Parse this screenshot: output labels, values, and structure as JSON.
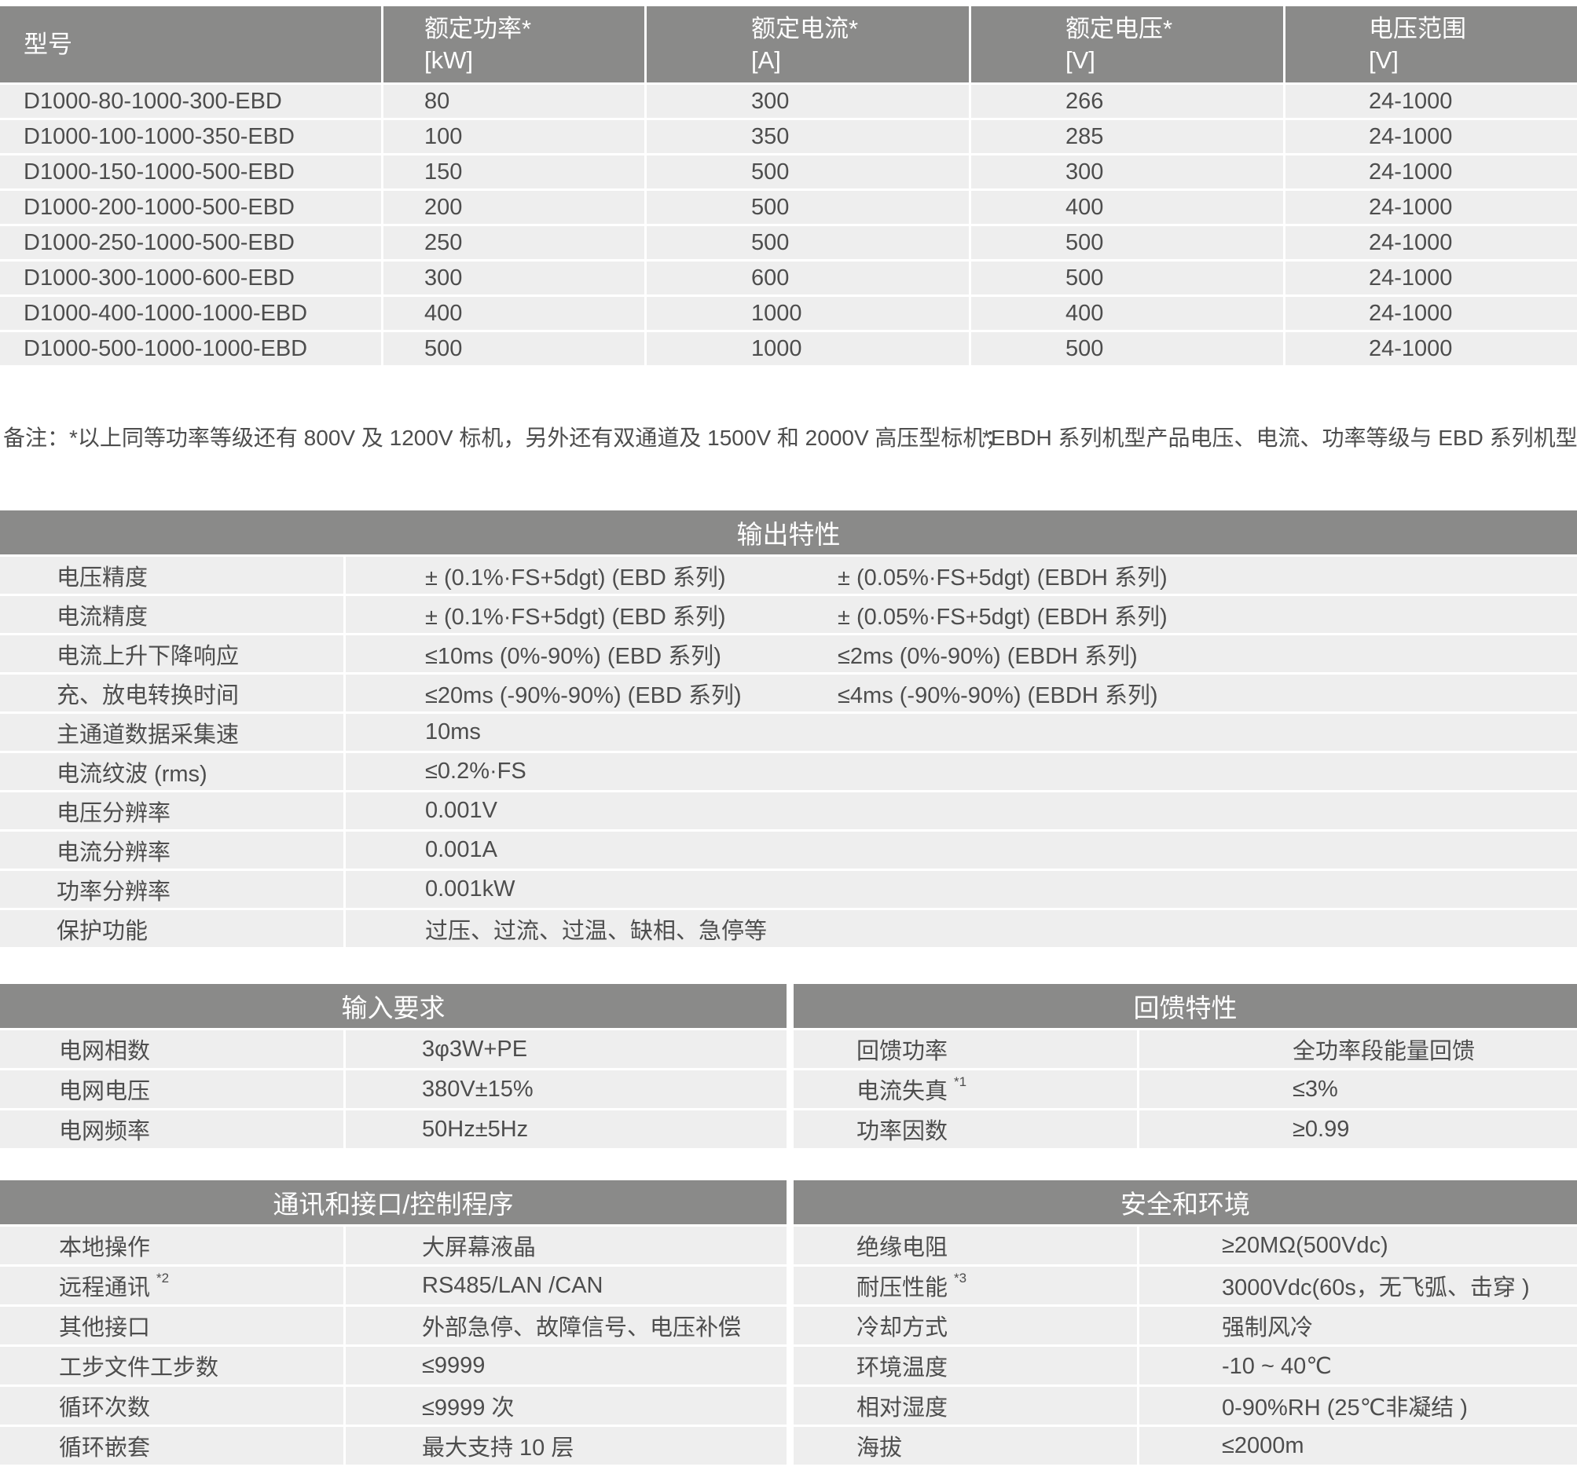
{
  "colors": {
    "header-bg": "#8a8a89",
    "row-bg": "#eeeeee",
    "text": "#4d4d4d",
    "header-text": "#ffffff",
    "page-bg": "#ffffff"
  },
  "model_table": {
    "headers": [
      {
        "line1": "型号",
        "line2": ""
      },
      {
        "line1": "额定功率*",
        "line2": "[kW]"
      },
      {
        "line1": "额定电流*",
        "line2": "[A]"
      },
      {
        "line1": "额定电压*",
        "line2": "[V]"
      },
      {
        "line1": "电压范围",
        "line2": "[V]"
      }
    ],
    "rows": [
      [
        "D1000-80-1000-300-EBD",
        "80",
        "300",
        "266",
        "24-1000"
      ],
      [
        "D1000-100-1000-350-EBD",
        "100",
        "350",
        "285",
        "24-1000"
      ],
      [
        "D1000-150-1000-500-EBD",
        "150",
        "500",
        "300",
        "24-1000"
      ],
      [
        "D1000-200-1000-500-EBD",
        "200",
        "500",
        "400",
        "24-1000"
      ],
      [
        "D1000-250-1000-500-EBD",
        "250",
        "500",
        "500",
        "24-1000"
      ],
      [
        "D1000-300-1000-600-EBD",
        "300",
        "600",
        "500",
        "24-1000"
      ],
      [
        "D1000-400-1000-1000-EBD",
        "400",
        "1000",
        "400",
        "24-1000"
      ],
      [
        "D1000-500-1000-1000-EBD",
        "500",
        "1000",
        "500",
        "24-1000"
      ]
    ]
  },
  "notes": {
    "left": "备注：*以上同等功率等级还有 800V 及 1200V 标机，另外还有双通道及 1500V 和 2000V 高压型标机；",
    "right": "*EBDH 系列机型产品电压、电流、功率等级与 EBD 系列机型相同。"
  },
  "sections": {
    "output": {
      "title": "输出特性",
      "rows": [
        {
          "label": "电压精度",
          "sup": "",
          "v1": "± (0.1%·FS+5dgt) (EBD 系列)",
          "v2": "± (0.05%·FS+5dgt) (EBDH 系列)"
        },
        {
          "label": "电流精度",
          "sup": "",
          "v1": "± (0.1%·FS+5dgt) (EBD 系列)",
          "v2": "± (0.05%·FS+5dgt) (EBDH 系列)"
        },
        {
          "label": "电流上升下降响应",
          "sup": "",
          "v1": "≤10ms (0%-90%) (EBD 系列)",
          "v2": "≤2ms (0%-90%) (EBDH 系列)"
        },
        {
          "label": "充、放电转换时间",
          "sup": "",
          "v1": "≤20ms (-90%-90%) (EBD 系列)",
          "v2": "≤4ms (-90%-90%) (EBDH 系列)"
        },
        {
          "label": "主通道数据采集速",
          "sup": "",
          "v1": "10ms",
          "v2": ""
        },
        {
          "label": "电流纹波 (rms)",
          "sup": "",
          "v1": "≤0.2%·FS",
          "v2": ""
        },
        {
          "label": "电压分辨率",
          "sup": "",
          "v1": "0.001V",
          "v2": ""
        },
        {
          "label": "电流分辨率",
          "sup": "",
          "v1": "0.001A",
          "v2": ""
        },
        {
          "label": "功率分辨率",
          "sup": "",
          "v1": "0.001kW",
          "v2": ""
        },
        {
          "label": "保护功能",
          "sup": "",
          "v1": "过压、过流、过温、缺相、急停等",
          "v2": ""
        }
      ]
    },
    "input": {
      "title": "输入要求",
      "rows": [
        {
          "label": "电网相数",
          "sup": "",
          "value": "3φ3W+PE"
        },
        {
          "label": "电网电压",
          "sup": "",
          "value": "380V±15%"
        },
        {
          "label": "电网频率",
          "sup": "",
          "value": "50Hz±5Hz"
        }
      ]
    },
    "feedback": {
      "title": "回馈特性",
      "rows": [
        {
          "label": "回馈功率",
          "sup": "",
          "value": "全功率段能量回馈"
        },
        {
          "label": "电流失真",
          "sup": "*1",
          "value": "≤3%"
        },
        {
          "label": "功率因数",
          "sup": "",
          "value": "≥0.99"
        }
      ]
    },
    "comm": {
      "title": "通讯和接口/控制程序",
      "rows": [
        {
          "label": "本地操作",
          "sup": "",
          "value": "大屏幕液晶"
        },
        {
          "label": "远程通讯",
          "sup": "*2",
          "value": "RS485/LAN /CAN"
        },
        {
          "label": "其他接口",
          "sup": "",
          "value": "外部急停、故障信号、电压补偿"
        },
        {
          "label": "工步文件工步数",
          "sup": "",
          "value": "≤9999"
        },
        {
          "label": "循环次数",
          "sup": "",
          "value": "≤9999 次"
        },
        {
          "label": "循环嵌套",
          "sup": "",
          "value": "最大支持 10 层"
        }
      ]
    },
    "safety": {
      "title": "安全和环境",
      "rows": [
        {
          "label": "绝缘电阻",
          "sup": "",
          "value": "≥20MΩ(500Vdc)"
        },
        {
          "label": "耐压性能",
          "sup": "*3",
          "value": "3000Vdc(60s，无飞弧、击穿 )"
        },
        {
          "label": "冷却方式",
          "sup": "",
          "value": "强制风冷"
        },
        {
          "label": "环境温度",
          "sup": "",
          "value": "-10 ~ 40℃"
        },
        {
          "label": "相对湿度",
          "sup": "",
          "value": "0-90%RH (25℃非凝结 )"
        },
        {
          "label": "海拔",
          "sup": "",
          "value": "≤2000m"
        }
      ]
    }
  }
}
